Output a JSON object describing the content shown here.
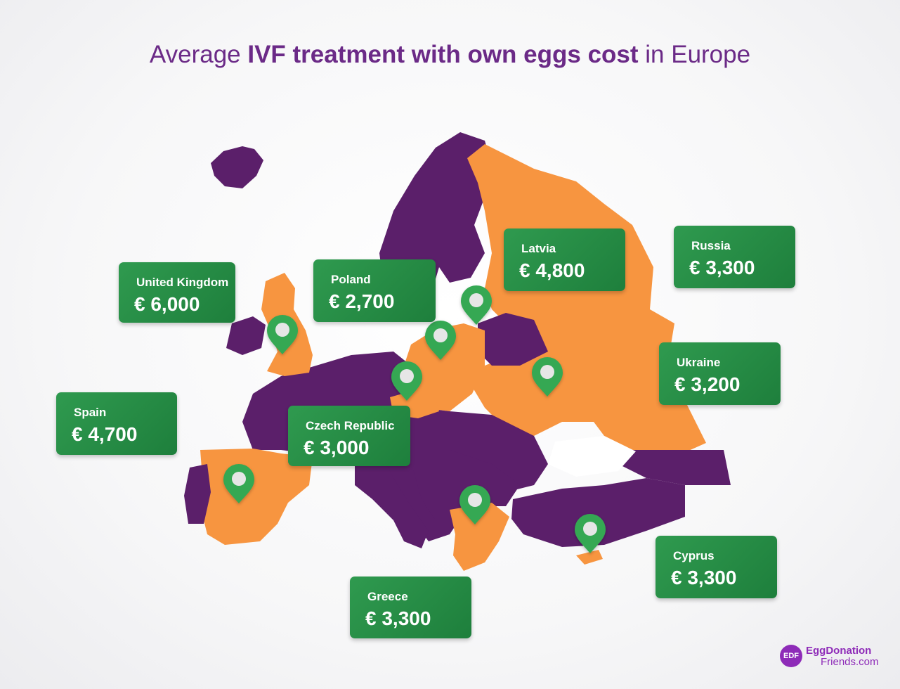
{
  "title": {
    "prefix": "Average ",
    "bold": "IVF treatment with own eggs cost",
    "suffix": " in Europe"
  },
  "colors": {
    "highlighted_country": "#f79540",
    "other_country": "#5b1f6a",
    "card": "#268c45",
    "pin": "#34a853",
    "brand": "#8e2bb8"
  },
  "labels": [
    {
      "country": "United Kingdom",
      "price": "€ 6,000"
    },
    {
      "country": "Poland",
      "price": "€ 2,700"
    },
    {
      "country": "Latvia",
      "price": "€ 4,800"
    },
    {
      "country": "Russia",
      "price": "€ 3,300"
    },
    {
      "country": "Ukraine",
      "price": "€ 3,200"
    },
    {
      "country": "Spain",
      "price": "€ 4,700"
    },
    {
      "country": "Czech Republic",
      "price": "€ 3,000"
    },
    {
      "country": "Cyprus",
      "price": "€ 3,300"
    },
    {
      "country": "Greece",
      "price": "€ 3,300"
    }
  ],
  "logo": {
    "badge": "EDF",
    "line1": "EggDonation",
    "line2": "Friends.com"
  }
}
